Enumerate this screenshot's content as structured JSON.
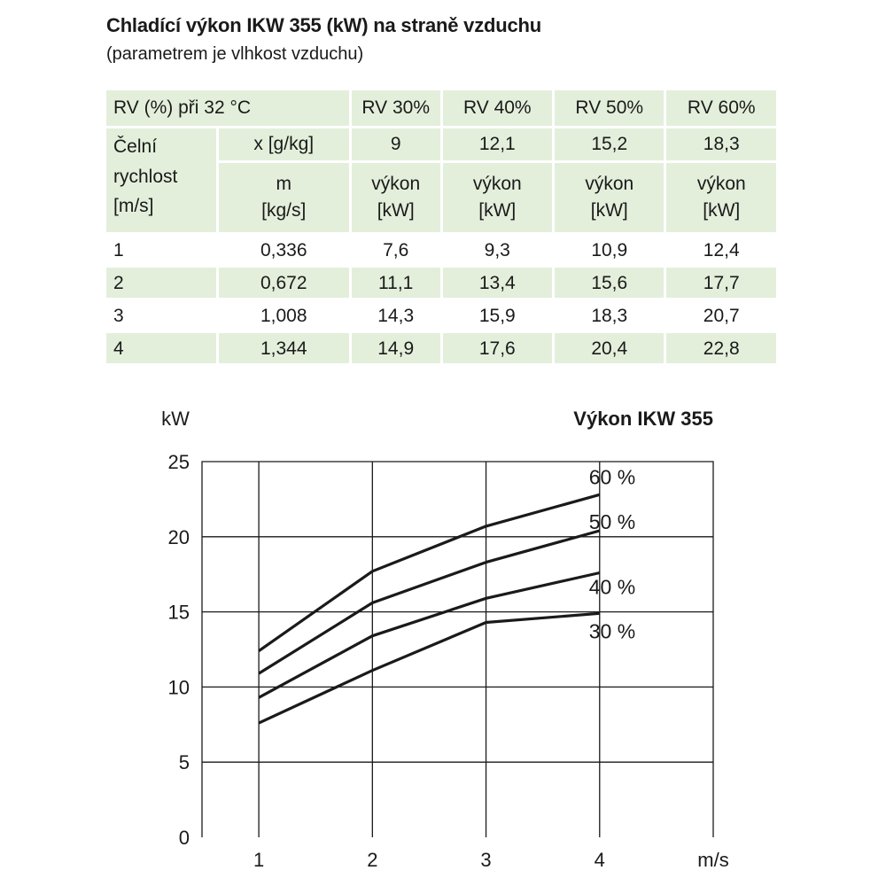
{
  "title": "Chladící výkon IKW 355 (kW) na straně vzduchu",
  "subtitle": "(parametrem je vlhkost vzduchu)",
  "table": {
    "header": {
      "label": "RV (%) při 32 °C",
      "cols": [
        "RV 30%",
        "RV 40%",
        "RV 50%",
        "RV 60%"
      ]
    },
    "row_x": {
      "label": "x [g/kg]",
      "values": [
        "9",
        "12,1",
        "15,2",
        "18,3"
      ]
    },
    "speed_label": {
      "line1": "Čelní",
      "line2": "rychlost",
      "line3": "[m/s]"
    },
    "row_m": {
      "label_line1": "m",
      "label_line2": "[kg/s]",
      "value_line1": "výkon",
      "value_line2": "[kW]"
    },
    "rows": [
      {
        "speed": "1",
        "m": "0,336",
        "values": [
          "7,6",
          "9,3",
          "10,9",
          "12,4"
        ]
      },
      {
        "speed": "2",
        "m": "0,672",
        "values": [
          "11,1",
          "13,4",
          "15,6",
          "17,7"
        ]
      },
      {
        "speed": "3",
        "m": "1,008",
        "values": [
          "14,3",
          "15,9",
          "18,3",
          "20,7"
        ]
      },
      {
        "speed": "4",
        "m": "1,344",
        "values": [
          "14,9",
          "17,6",
          "20,4",
          "22,8"
        ]
      }
    ]
  },
  "chart_data": {
    "type": "line",
    "title": "Výkon IKW 355",
    "ylabel": "kW",
    "xlabel": "m/s",
    "x": [
      1,
      2,
      3,
      4
    ],
    "xticks": [
      "1",
      "2",
      "3",
      "4"
    ],
    "xlim": [
      0.5,
      5
    ],
    "ylim": [
      0,
      25
    ],
    "yticks": [
      "0",
      "5",
      "10",
      "15",
      "20",
      "25"
    ],
    "grid": true,
    "line_color": "#1a1a1a",
    "series": [
      {
        "name": "30 %",
        "values": [
          7.6,
          11.1,
          14.3,
          14.9
        ]
      },
      {
        "name": "40 %",
        "values": [
          9.3,
          13.4,
          15.9,
          17.6
        ]
      },
      {
        "name": "50 %",
        "values": [
          10.9,
          15.6,
          18.3,
          20.4
        ]
      },
      {
        "name": "60 %",
        "values": [
          12.4,
          17.7,
          20.7,
          22.8
        ]
      }
    ]
  }
}
